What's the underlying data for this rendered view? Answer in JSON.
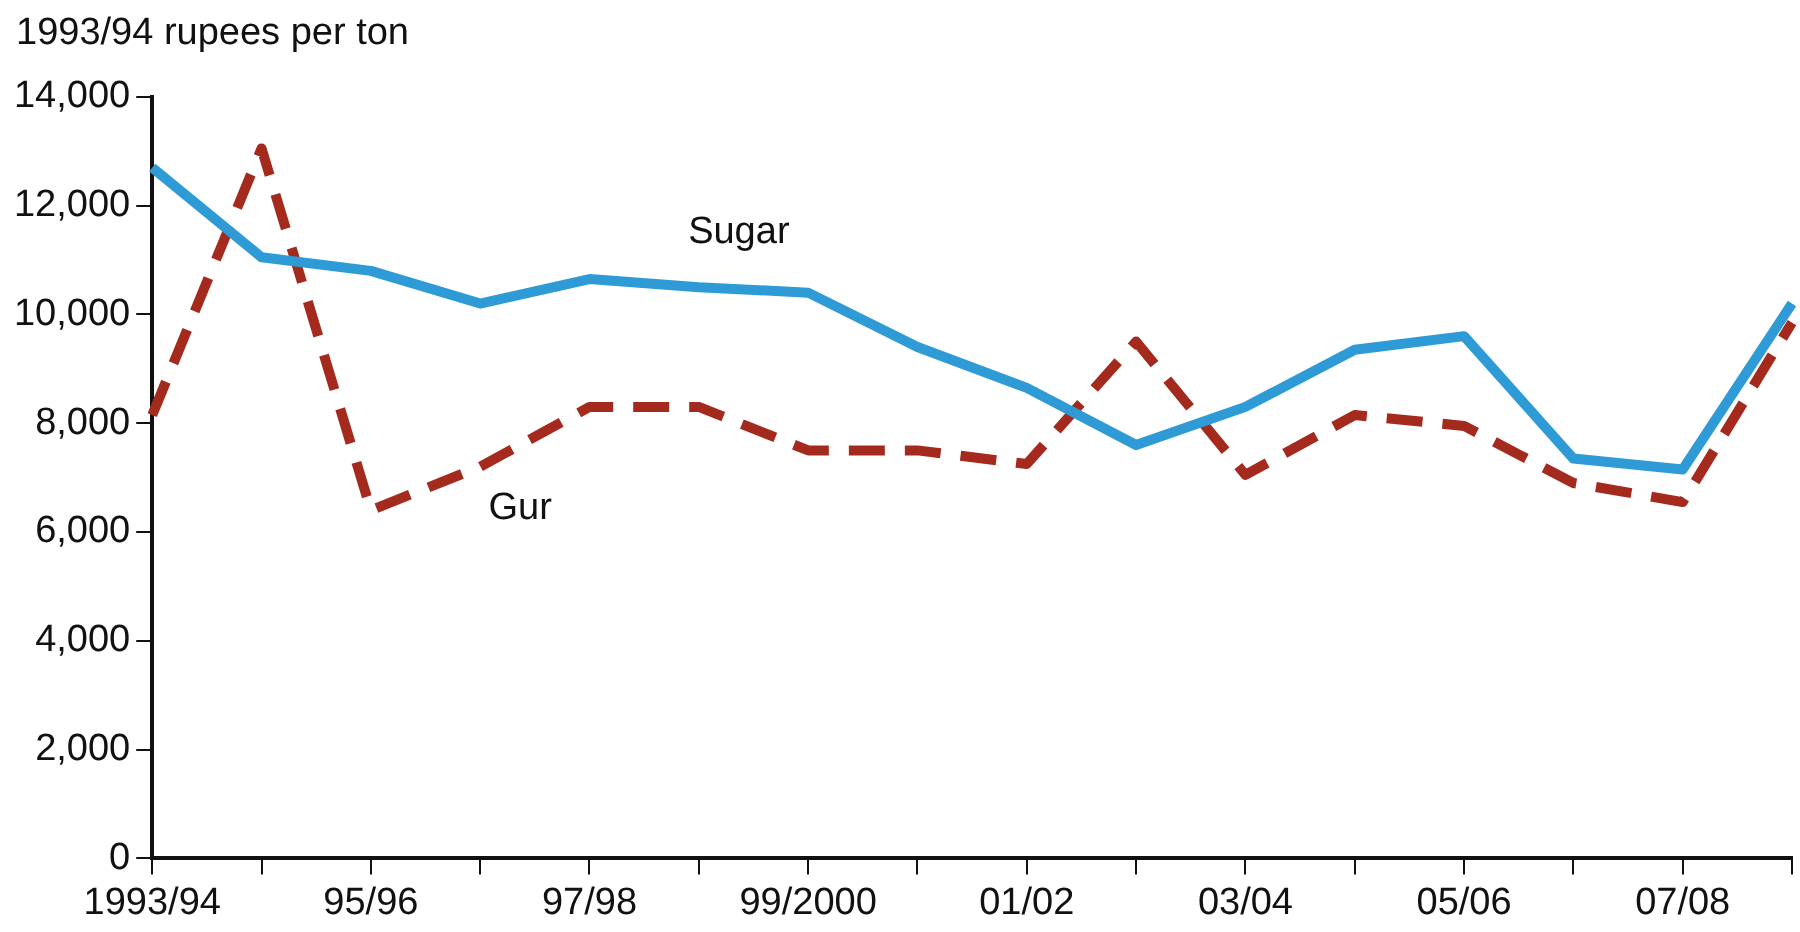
{
  "chart_data": {
    "type": "line",
    "ylabel": "1993/94 rupees per ton",
    "categories": [
      "1993/94",
      null,
      "95/96",
      null,
      "97/98",
      null,
      "99/2000",
      null,
      "01/02",
      null,
      "03/04",
      null,
      "05/06",
      null,
      "07/08",
      null
    ],
    "series": [
      {
        "name": "Sugar",
        "color": "#2e9bd6",
        "line_style": "solid",
        "values": [
          12700,
          11050,
          10800,
          10200,
          10650,
          10500,
          10400,
          9400,
          8650,
          7600,
          8300,
          9350,
          9600,
          7350,
          7150,
          10200
        ]
      },
      {
        "name": "Gur",
        "color": "#a52a1e",
        "line_style": "dashed",
        "values": [
          8150,
          13050,
          6400,
          7200,
          8300,
          8300,
          7500,
          7500,
          7250,
          9500,
          7050,
          8150,
          7950,
          6900,
          6550,
          9850
        ]
      }
    ],
    "ylim": [
      0,
      14000
    ],
    "yticks": [
      {
        "value": 0,
        "label": "0"
      },
      {
        "value": 2000,
        "label": "2,000"
      },
      {
        "value": 4000,
        "label": "4,000"
      },
      {
        "value": 6000,
        "label": "6,000"
      },
      {
        "value": 8000,
        "label": "8,000"
      },
      {
        "value": 10000,
        "label": "10,000"
      },
      {
        "value": 12000,
        "label": "12,000"
      },
      {
        "value": 14000,
        "label": "14,000"
      }
    ],
    "grid": false,
    "legend": false,
    "marker": "none"
  }
}
